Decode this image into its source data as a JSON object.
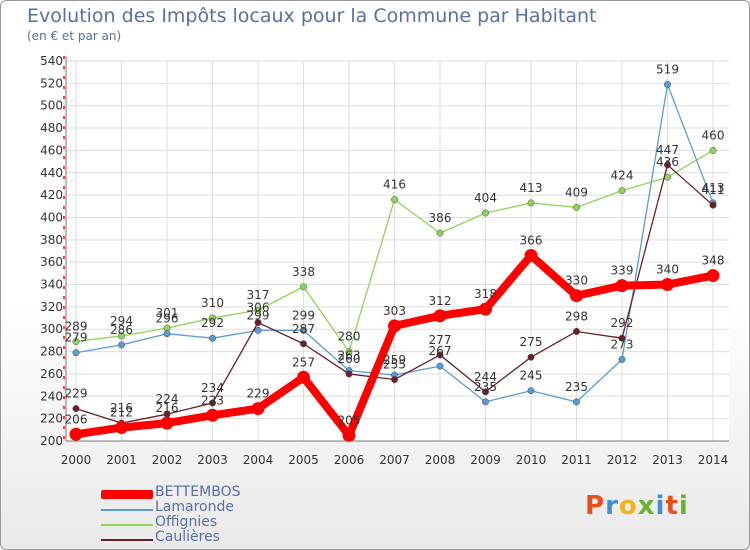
{
  "header": {
    "title": "Evolution des Impôts locaux pour la Commune par Habitant",
    "subtitle": "(en € et par an)"
  },
  "logo": {
    "letters": [
      "P",
      "r",
      "o",
      "x",
      "i",
      "t",
      "i"
    ],
    "colors": [
      "#e94e1b",
      "#3f8fd2",
      "#f2b21b",
      "#6ab42d",
      "#3f8fd2",
      "#e94e1b",
      "#6ab42d"
    ]
  },
  "chart_data": {
    "type": "line",
    "title": "Evolution des Impôts locaux pour la Commune par Habitant",
    "subtitle": "(en € et par an)",
    "x": [
      "2000",
      "2001",
      "2002",
      "2003",
      "2004",
      "2005",
      "2006",
      "2007",
      "2008",
      "2009",
      "2010",
      "2011",
      "2012",
      "2013",
      "2014"
    ],
    "ylim": [
      200,
      540
    ],
    "yticks": [
      200,
      220,
      240,
      260,
      280,
      300,
      320,
      340,
      360,
      380,
      400,
      420,
      440,
      460,
      480,
      500,
      520,
      540
    ],
    "grid": true,
    "legend": "bottom-left",
    "series": [
      {
        "name": "BETTEMBOS",
        "color": "#ff0000",
        "values": [
          206,
          212,
          216,
          223,
          229,
          257,
          205,
          303,
          312,
          318,
          366,
          330,
          339,
          340,
          348
        ],
        "labels": [
          "206",
          "212",
          "216",
          "223",
          "229",
          "257",
          "205",
          "303",
          "312",
          "318",
          "366",
          "330",
          "339",
          "340",
          "348"
        ]
      },
      {
        "name": "Lamaronde",
        "color": "#5a9bd5",
        "values": [
          279,
          286,
          296,
          292,
          299,
          299,
          263,
          259,
          267,
          235,
          245,
          235,
          273,
          519,
          413
        ],
        "labels": [
          "279",
          "286",
          "296",
          "292",
          "299",
          "299",
          "263",
          "259",
          "267",
          "235",
          "245",
          "235",
          "273",
          "519",
          "413"
        ]
      },
      {
        "name": "Offignies",
        "color": "#8fd45a",
        "values": [
          289,
          294,
          301,
          310,
          317,
          338,
          280,
          416,
          386,
          404,
          413,
          409,
          424,
          436,
          460
        ],
        "labels": [
          "289",
          "294",
          "301",
          "310",
          "317",
          "338",
          "280",
          "416",
          "386",
          "404",
          "413",
          "409",
          "424",
          "436",
          "460"
        ]
      },
      {
        "name": "Caulières",
        "color": "#6b1f2a",
        "values": [
          229,
          216,
          224,
          234,
          306,
          287,
          260,
          255,
          277,
          244,
          275,
          298,
          292,
          447,
          411
        ],
        "labels": [
          "229",
          "216",
          "224",
          "234",
          "306",
          "287",
          "260",
          "255",
          "277",
          "244",
          "275",
          "298",
          "292",
          "447",
          "411"
        ]
      }
    ]
  }
}
